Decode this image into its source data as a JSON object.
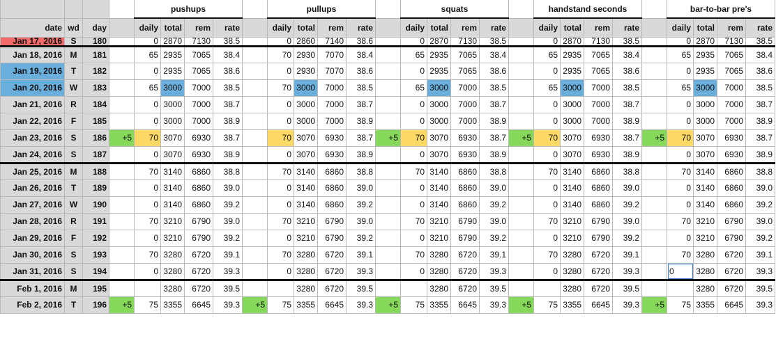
{
  "headers": {
    "groups": [
      "pushups",
      "pullups",
      "squats",
      "handstand seconds",
      "bar-to-bar pre's"
    ],
    "left": [
      "date",
      "wd",
      "day"
    ],
    "sub": [
      "daily",
      "total",
      "rem",
      "rate"
    ]
  },
  "rows": [
    {
      "date": "Jan 17, 2016",
      "wd": "S",
      "day": "180",
      "style": "partial",
      "datecolor": "red",
      "groups": [
        {
          "plus": "",
          "daily": "0",
          "total": "2870",
          "rem": "7130",
          "rate": "38.5"
        },
        {
          "plus": "",
          "daily": "0",
          "total": "2860",
          "rem": "7140",
          "rate": "38.6"
        },
        {
          "plus": "",
          "daily": "0",
          "total": "2870",
          "rem": "7130",
          "rate": "38.5"
        },
        {
          "plus": "",
          "daily": "0",
          "total": "2870",
          "rem": "7130",
          "rate": "38.5"
        },
        {
          "plus": "",
          "daily": "0",
          "total": "2870",
          "rem": "7130",
          "rate": "38.5"
        }
      ]
    },
    {
      "date": "Jan 18, 2016",
      "wd": "M",
      "day": "181",
      "datecolor": "",
      "groups": [
        {
          "plus": "",
          "daily": "65",
          "total": "2935",
          "rem": "7065",
          "rate": "38.4"
        },
        {
          "plus": "",
          "daily": "70",
          "total": "2930",
          "rem": "7070",
          "rate": "38.4"
        },
        {
          "plus": "",
          "daily": "65",
          "total": "2935",
          "rem": "7065",
          "rate": "38.4"
        },
        {
          "plus": "",
          "daily": "65",
          "total": "2935",
          "rem": "7065",
          "rate": "38.4"
        },
        {
          "plus": "",
          "daily": "65",
          "total": "2935",
          "rem": "7065",
          "rate": "38.4"
        }
      ]
    },
    {
      "date": "Jan 19, 2016",
      "wd": "T",
      "day": "182",
      "datecolor": "blue",
      "groups": [
        {
          "plus": "",
          "daily": "0",
          "total": "2935",
          "rem": "7065",
          "rate": "38.6"
        },
        {
          "plus": "",
          "daily": "0",
          "total": "2930",
          "rem": "7070",
          "rate": "38.6"
        },
        {
          "plus": "",
          "daily": "0",
          "total": "2935",
          "rem": "7065",
          "rate": "38.6"
        },
        {
          "plus": "",
          "daily": "0",
          "total": "2935",
          "rem": "7065",
          "rate": "38.6"
        },
        {
          "plus": "",
          "daily": "0",
          "total": "2935",
          "rem": "7065",
          "rate": "38.6"
        }
      ]
    },
    {
      "date": "Jan 20, 2016",
      "wd": "W",
      "day": "183",
      "datecolor": "blue",
      "totalcolor": "blue",
      "groups": [
        {
          "plus": "",
          "daily": "65",
          "total": "3000",
          "rem": "7000",
          "rate": "38.5"
        },
        {
          "plus": "",
          "daily": "70",
          "total": "3000",
          "rem": "7000",
          "rate": "38.5"
        },
        {
          "plus": "",
          "daily": "65",
          "total": "3000",
          "rem": "7000",
          "rate": "38.5"
        },
        {
          "plus": "",
          "daily": "65",
          "total": "3000",
          "rem": "7000",
          "rate": "38.5"
        },
        {
          "plus": "",
          "daily": "65",
          "total": "3000",
          "rem": "7000",
          "rate": "38.5"
        }
      ]
    },
    {
      "date": "Jan 21, 2016",
      "wd": "R",
      "day": "184",
      "datecolor": "",
      "groups": [
        {
          "plus": "",
          "daily": "0",
          "total": "3000",
          "rem": "7000",
          "rate": "38.7"
        },
        {
          "plus": "",
          "daily": "0",
          "total": "3000",
          "rem": "7000",
          "rate": "38.7"
        },
        {
          "plus": "",
          "daily": "0",
          "total": "3000",
          "rem": "7000",
          "rate": "38.7"
        },
        {
          "plus": "",
          "daily": "0",
          "total": "3000",
          "rem": "7000",
          "rate": "38.7"
        },
        {
          "plus": "",
          "daily": "0",
          "total": "3000",
          "rem": "7000",
          "rate": "38.7"
        }
      ]
    },
    {
      "date": "Jan 22, 2016",
      "wd": "F",
      "day": "185",
      "datecolor": "",
      "groups": [
        {
          "plus": "",
          "daily": "0",
          "total": "3000",
          "rem": "7000",
          "rate": "38.9"
        },
        {
          "plus": "",
          "daily": "0",
          "total": "3000",
          "rem": "7000",
          "rate": "38.9"
        },
        {
          "plus": "",
          "daily": "0",
          "total": "3000",
          "rem": "7000",
          "rate": "38.9"
        },
        {
          "plus": "",
          "daily": "0",
          "total": "3000",
          "rem": "7000",
          "rate": "38.9"
        },
        {
          "plus": "",
          "daily": "0",
          "total": "3000",
          "rem": "7000",
          "rate": "38.9"
        }
      ]
    },
    {
      "date": "Jan 23, 2016",
      "wd": "S",
      "day": "186",
      "datecolor": "",
      "dailycolor": "yellow",
      "groups": [
        {
          "plus": "+5",
          "daily": "70",
          "total": "3070",
          "rem": "6930",
          "rate": "38.7"
        },
        {
          "plus": "",
          "daily": "70",
          "total": "3070",
          "rem": "6930",
          "rate": "38.7"
        },
        {
          "plus": "+5",
          "daily": "70",
          "total": "3070",
          "rem": "6930",
          "rate": "38.7"
        },
        {
          "plus": "+5",
          "daily": "70",
          "total": "3070",
          "rem": "6930",
          "rate": "38.7"
        },
        {
          "plus": "+5",
          "daily": "70",
          "total": "3070",
          "rem": "6930",
          "rate": "38.7"
        }
      ]
    },
    {
      "date": "Jan 24, 2016",
      "wd": "S",
      "day": "187",
      "datecolor": "",
      "thick": true,
      "groups": [
        {
          "plus": "",
          "daily": "0",
          "total": "3070",
          "rem": "6930",
          "rate": "38.9"
        },
        {
          "plus": "",
          "daily": "0",
          "total": "3070",
          "rem": "6930",
          "rate": "38.9"
        },
        {
          "plus": "",
          "daily": "0",
          "total": "3070",
          "rem": "6930",
          "rate": "38.9"
        },
        {
          "plus": "",
          "daily": "0",
          "total": "3070",
          "rem": "6930",
          "rate": "38.9"
        },
        {
          "plus": "",
          "daily": "0",
          "total": "3070",
          "rem": "6930",
          "rate": "38.9"
        }
      ]
    },
    {
      "date": "Jan 25, 2016",
      "wd": "M",
      "day": "188",
      "datecolor": "",
      "groups": [
        {
          "plus": "",
          "daily": "70",
          "total": "3140",
          "rem": "6860",
          "rate": "38.8"
        },
        {
          "plus": "",
          "daily": "70",
          "total": "3140",
          "rem": "6860",
          "rate": "38.8"
        },
        {
          "plus": "",
          "daily": "70",
          "total": "3140",
          "rem": "6860",
          "rate": "38.8"
        },
        {
          "plus": "",
          "daily": "70",
          "total": "3140",
          "rem": "6860",
          "rate": "38.8"
        },
        {
          "plus": "",
          "daily": "70",
          "total": "3140",
          "rem": "6860",
          "rate": "38.8"
        }
      ]
    },
    {
      "date": "Jan 26, 2016",
      "wd": "T",
      "day": "189",
      "datecolor": "",
      "groups": [
        {
          "plus": "",
          "daily": "0",
          "total": "3140",
          "rem": "6860",
          "rate": "39.0"
        },
        {
          "plus": "",
          "daily": "0",
          "total": "3140",
          "rem": "6860",
          "rate": "39.0"
        },
        {
          "plus": "",
          "daily": "0",
          "total": "3140",
          "rem": "6860",
          "rate": "39.0"
        },
        {
          "plus": "",
          "daily": "0",
          "total": "3140",
          "rem": "6860",
          "rate": "39.0"
        },
        {
          "plus": "",
          "daily": "0",
          "total": "3140",
          "rem": "6860",
          "rate": "39.0"
        }
      ]
    },
    {
      "date": "Jan 27, 2016",
      "wd": "W",
      "day": "190",
      "datecolor": "",
      "groups": [
        {
          "plus": "",
          "daily": "0",
          "total": "3140",
          "rem": "6860",
          "rate": "39.2"
        },
        {
          "plus": "",
          "daily": "0",
          "total": "3140",
          "rem": "6860",
          "rate": "39.2"
        },
        {
          "plus": "",
          "daily": "0",
          "total": "3140",
          "rem": "6860",
          "rate": "39.2"
        },
        {
          "plus": "",
          "daily": "0",
          "total": "3140",
          "rem": "6860",
          "rate": "39.2"
        },
        {
          "plus": "",
          "daily": "0",
          "total": "3140",
          "rem": "6860",
          "rate": "39.2"
        }
      ]
    },
    {
      "date": "Jan 28, 2016",
      "wd": "R",
      "day": "191",
      "datecolor": "",
      "groups": [
        {
          "plus": "",
          "daily": "70",
          "total": "3210",
          "rem": "6790",
          "rate": "39.0"
        },
        {
          "plus": "",
          "daily": "70",
          "total": "3210",
          "rem": "6790",
          "rate": "39.0"
        },
        {
          "plus": "",
          "daily": "70",
          "total": "3210",
          "rem": "6790",
          "rate": "39.0"
        },
        {
          "plus": "",
          "daily": "70",
          "total": "3210",
          "rem": "6790",
          "rate": "39.0"
        },
        {
          "plus": "",
          "daily": "70",
          "total": "3210",
          "rem": "6790",
          "rate": "39.0"
        }
      ]
    },
    {
      "date": "Jan 29, 2016",
      "wd": "F",
      "day": "192",
      "datecolor": "",
      "groups": [
        {
          "plus": "",
          "daily": "0",
          "total": "3210",
          "rem": "6790",
          "rate": "39.2"
        },
        {
          "plus": "",
          "daily": "0",
          "total": "3210",
          "rem": "6790",
          "rate": "39.2"
        },
        {
          "plus": "",
          "daily": "0",
          "total": "3210",
          "rem": "6790",
          "rate": "39.2"
        },
        {
          "plus": "",
          "daily": "0",
          "total": "3210",
          "rem": "6790",
          "rate": "39.2"
        },
        {
          "plus": "",
          "daily": "0",
          "total": "3210",
          "rem": "6790",
          "rate": "39.2"
        }
      ]
    },
    {
      "date": "Jan 30, 2016",
      "wd": "S",
      "day": "193",
      "datecolor": "",
      "groups": [
        {
          "plus": "",
          "daily": "70",
          "total": "3280",
          "rem": "6720",
          "rate": "39.1"
        },
        {
          "plus": "",
          "daily": "70",
          "total": "3280",
          "rem": "6720",
          "rate": "39.1"
        },
        {
          "plus": "",
          "daily": "70",
          "total": "3280",
          "rem": "6720",
          "rate": "39.1"
        },
        {
          "plus": "",
          "daily": "70",
          "total": "3280",
          "rem": "6720",
          "rate": "39.1"
        },
        {
          "plus": "",
          "daily": "70",
          "total": "3280",
          "rem": "6720",
          "rate": "39.1"
        }
      ]
    },
    {
      "date": "Jan 31, 2016",
      "wd": "S",
      "day": "194",
      "datecolor": "",
      "thick": true,
      "groups": [
        {
          "plus": "",
          "daily": "0",
          "total": "3280",
          "rem": "6720",
          "rate": "39.3"
        },
        {
          "plus": "",
          "daily": "0",
          "total": "3280",
          "rem": "6720",
          "rate": "39.3"
        },
        {
          "plus": "",
          "daily": "0",
          "total": "3280",
          "rem": "6720",
          "rate": "39.3"
        },
        {
          "plus": "",
          "daily": "0",
          "total": "3280",
          "rem": "6720",
          "rate": "39.3"
        },
        {
          "plus": "",
          "daily": "0",
          "total": "3280",
          "rem": "6720",
          "rate": "39.3"
        }
      ]
    },
    {
      "date": "Feb 1, 2016",
      "wd": "M",
      "day": "195",
      "datecolor": "",
      "groups": [
        {
          "plus": "",
          "daily": "",
          "total": "3280",
          "rem": "6720",
          "rate": "39.5"
        },
        {
          "plus": "",
          "daily": "",
          "total": "3280",
          "rem": "6720",
          "rate": "39.5"
        },
        {
          "plus": "",
          "daily": "",
          "total": "3280",
          "rem": "6720",
          "rate": "39.5"
        },
        {
          "plus": "",
          "daily": "",
          "total": "3280",
          "rem": "6720",
          "rate": "39.5"
        },
        {
          "plus": "",
          "daily": "",
          "total": "3280",
          "rem": "6720",
          "rate": "39.5"
        }
      ]
    },
    {
      "date": "Feb 2, 2016",
      "wd": "T",
      "day": "196",
      "datecolor": "",
      "groups": [
        {
          "plus": "+5",
          "daily": "75",
          "total": "3355",
          "rem": "6645",
          "rate": "39.3"
        },
        {
          "plus": "+5",
          "daily": "75",
          "total": "3355",
          "rem": "6645",
          "rate": "39.3"
        },
        {
          "plus": "+5",
          "daily": "75",
          "total": "3355",
          "rem": "6645",
          "rate": "39.3"
        },
        {
          "plus": "+5",
          "daily": "75",
          "total": "3355",
          "rem": "6645",
          "rate": "39.3"
        },
        {
          "plus": "+5",
          "daily": "75",
          "total": "3355",
          "rem": "6645",
          "rate": "39.3"
        }
      ]
    }
  ],
  "selected_cell": {
    "row": 14,
    "group": 4,
    "field": "daily"
  },
  "colors": {
    "red": "#f36a6a",
    "blue": "#6aaedc",
    "yellow": "#ffd966",
    "green": "#86d85a",
    "header_gray": "#d9d9d9"
  }
}
